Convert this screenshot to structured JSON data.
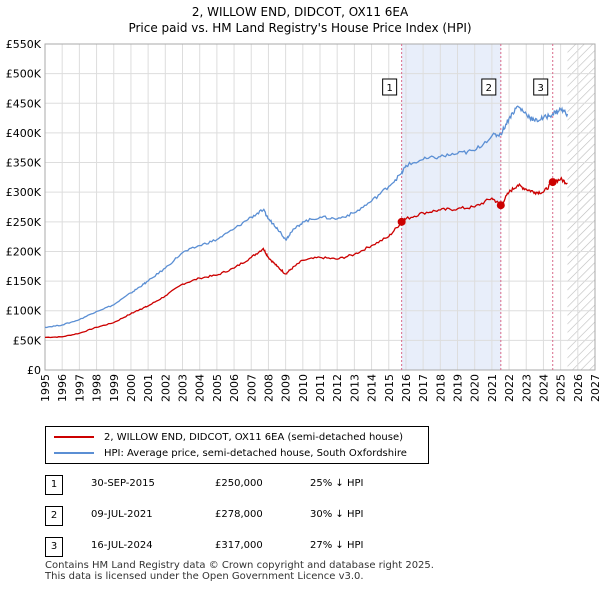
{
  "chart_data": {
    "type": "line",
    "title": "2, WILLOW END, DIDCOT, OX11 6EA",
    "subtitle": "Price paid vs. HM Land Registry's House Price Index (HPI)",
    "xlabel": "",
    "ylabel": "",
    "xlim": [
      1995,
      2027
    ],
    "ylim": [
      0,
      550000
    ],
    "y_ticks": [
      0,
      50000,
      100000,
      150000,
      200000,
      250000,
      300000,
      350000,
      400000,
      450000,
      500000,
      550000
    ],
    "y_tick_labels": [
      "£0",
      "£50K",
      "£100K",
      "£150K",
      "£200K",
      "£250K",
      "£300K",
      "£350K",
      "£400K",
      "£450K",
      "£500K",
      "£550K"
    ],
    "x_ticks": [
      1995,
      1996,
      1997,
      1998,
      1999,
      2000,
      2001,
      2002,
      2003,
      2004,
      2005,
      2006,
      2007,
      2008,
      2009,
      2010,
      2011,
      2012,
      2013,
      2014,
      2015,
      2016,
      2017,
      2018,
      2019,
      2020,
      2021,
      2022,
      2023,
      2024,
      2025,
      2026,
      2027
    ],
    "x_tick_labels": [
      "1995",
      "1996",
      "1997",
      "1998",
      "1999",
      "2000",
      "2001",
      "2002",
      "2003",
      "2004",
      "2005",
      "2006",
      "2007",
      "2008",
      "2009",
      "2010",
      "2011",
      "2012",
      "2013",
      "2014",
      "2015",
      "2016",
      "2017",
      "2018",
      "2019",
      "2020",
      "2021",
      "2022",
      "2023",
      "2024",
      "2025",
      "2026",
      "2027"
    ],
    "grid": true,
    "forecast_start": 2025.4,
    "shaded_period": [
      2015.75,
      2021.52
    ],
    "series": [
      {
        "name": "2, WILLOW END, DIDCOT, OX11 6EA (semi-detached house)",
        "color": "#cc0000",
        "x": [
          1995.0,
          1996.0,
          1997.0,
          1998.0,
          1999.0,
          2000.0,
          2000.5,
          2001.0,
          2002.0,
          2003.0,
          2004.0,
          2005.0,
          2006.0,
          2007.0,
          2007.7,
          2008.0,
          2008.5,
          2009.0,
          2009.3,
          2010.0,
          2011.0,
          2012.0,
          2013.0,
          2014.0,
          2015.0,
          2015.75,
          2016.0,
          2017.0,
          2018.0,
          2019.0,
          2020.0,
          2021.0,
          2021.52,
          2022.0,
          2022.5,
          2023.0,
          2023.5,
          2024.0,
          2024.54,
          2025.0,
          2025.4
        ],
        "values": [
          55000,
          56000,
          62000,
          72000,
          80000,
          95000,
          102000,
          108000,
          125000,
          145000,
          155000,
          160000,
          172000,
          190000,
          205000,
          190000,
          175000,
          162000,
          170000,
          185000,
          190000,
          187000,
          195000,
          210000,
          225000,
          250000,
          255000,
          265000,
          270000,
          272000,
          275000,
          290000,
          278000,
          300000,
          312000,
          305000,
          300000,
          300000,
          317000,
          322000,
          315000
        ]
      },
      {
        "name": "HPI: Average price, semi-detached house, South Oxfordshire",
        "color": "#5b8fd4",
        "x": [
          1995.0,
          1996.0,
          1997.0,
          1998.0,
          1999.0,
          2000.0,
          2000.5,
          2001.0,
          2002.0,
          2003.0,
          2004.0,
          2005.0,
          2006.0,
          2007.0,
          2007.7,
          2008.0,
          2008.5,
          2009.0,
          2009.3,
          2010.0,
          2011.0,
          2012.0,
          2013.0,
          2014.0,
          2015.0,
          2015.75,
          2016.0,
          2017.0,
          2018.0,
          2019.0,
          2020.0,
          2021.0,
          2021.52,
          2022.0,
          2022.5,
          2023.0,
          2023.5,
          2024.0,
          2024.54,
          2025.0,
          2025.4
        ],
        "values": [
          72000,
          76000,
          85000,
          99000,
          110000,
          130000,
          140000,
          150000,
          172000,
          198000,
          210000,
          220000,
          238000,
          258000,
          270000,
          255000,
          240000,
          220000,
          232000,
          250000,
          258000,
          255000,
          265000,
          285000,
          310000,
          332000,
          345000,
          355000,
          360000,
          365000,
          370000,
          395000,
          398000,
          425000,
          445000,
          432000,
          420000,
          425000,
          432000,
          440000,
          432000
        ]
      }
    ],
    "markers": [
      {
        "label": "1",
        "x": 2015.75,
        "value": 250000
      },
      {
        "label": "2",
        "x": 2021.52,
        "value": 278000
      },
      {
        "label": "3",
        "x": 2024.54,
        "value": 317000
      }
    ]
  },
  "legend": {
    "items": [
      {
        "label": "2, WILLOW END, DIDCOT, OX11 6EA (semi-detached house)",
        "color": "#cc0000"
      },
      {
        "label": "HPI: Average price, semi-detached house, South Oxfordshire",
        "color": "#5b8fd4"
      }
    ]
  },
  "sales": [
    {
      "num": "1",
      "date": "30-SEP-2015",
      "price": "£250,000",
      "hpi": "25% ↓ HPI"
    },
    {
      "num": "2",
      "date": "09-JUL-2021",
      "price": "£278,000",
      "hpi": "30% ↓ HPI"
    },
    {
      "num": "3",
      "date": "16-JUL-2024",
      "price": "£317,000",
      "hpi": "27% ↓ HPI"
    }
  ],
  "footer": {
    "line1": "Contains HM Land Registry data © Crown copyright and database right 2025.",
    "line2": "This data is licensed under the Open Government Licence v3.0."
  }
}
